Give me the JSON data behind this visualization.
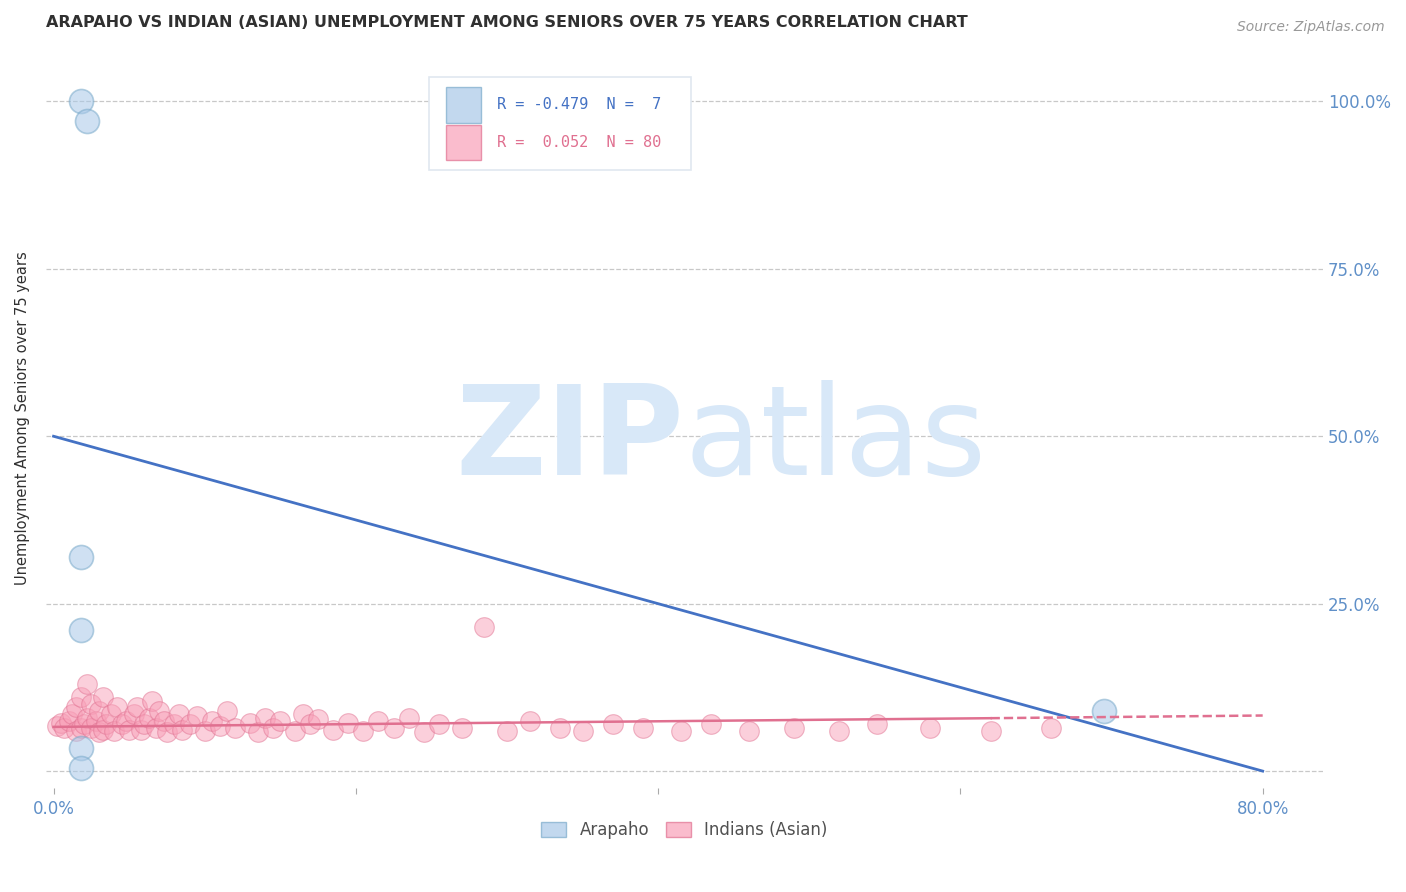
{
  "title": "ARAPAHO VS INDIAN (ASIAN) UNEMPLOYMENT AMONG SENIORS OVER 75 YEARS CORRELATION CHART",
  "source_text": "Source: ZipAtlas.com",
  "ylabel": "Unemployment Among Seniors over 75 years",
  "xlim": [
    -0.005,
    0.84
  ],
  "ylim": [
    -0.025,
    1.08
  ],
  "ytick_values": [
    0.0,
    0.25,
    0.5,
    0.75,
    1.0
  ],
  "ytick_labels_left": [
    "",
    "",
    "",
    "",
    ""
  ],
  "ytick_labels_right": [
    "",
    "25.0%",
    "50.0%",
    "75.0%",
    "100.0%"
  ],
  "xtick_values": [
    0.0,
    0.2,
    0.4,
    0.6,
    0.8
  ],
  "xtick_labels": [
    "0.0%",
    "",
    "",
    "",
    "80.0%"
  ],
  "watermark_zip": "ZIP",
  "watermark_atlas": "atlas",
  "arapaho_color": "#a8c8e8",
  "arapaho_edge": "#7aaaca",
  "indian_color": "#f8a0b8",
  "indian_edge": "#e07090",
  "blue_line_color": "#4472c4",
  "pink_line_color": "#e07090",
  "grid_color": "#c8c8c8",
  "background_color": "#ffffff",
  "title_color": "#303030",
  "axis_label_color": "#303030",
  "tick_color": "#6090c8",
  "watermark_color": "#d8e8f8",
  "legend_box_color": "#e0e8f0",
  "arapaho_x": [
    0.018,
    0.022,
    0.018,
    0.018,
    0.018,
    0.018,
    0.695
  ],
  "arapaho_y": [
    1.0,
    0.97,
    0.32,
    0.21,
    0.035,
    0.005,
    0.09
  ],
  "arapaho_line_x0": 0.0,
  "arapaho_line_y0": 0.5,
  "arapaho_line_x1": 0.8,
  "arapaho_line_y1": 0.0,
  "indian_line_x0": 0.0,
  "indian_line_y0": 0.066,
  "indian_line_x1_solid": 0.62,
  "indian_line_y1_solid": 0.079,
  "indian_line_x2": 0.8,
  "indian_line_y2": 0.083,
  "indian_x": [
    0.002,
    0.005,
    0.007,
    0.01,
    0.012,
    0.015,
    0.015,
    0.018,
    0.018,
    0.02,
    0.022,
    0.022,
    0.025,
    0.025,
    0.028,
    0.03,
    0.03,
    0.033,
    0.033,
    0.035,
    0.038,
    0.04,
    0.042,
    0.045,
    0.048,
    0.05,
    0.053,
    0.055,
    0.058,
    0.06,
    0.063,
    0.065,
    0.068,
    0.07,
    0.073,
    0.075,
    0.08,
    0.083,
    0.085,
    0.09,
    0.095,
    0.1,
    0.105,
    0.11,
    0.115,
    0.12,
    0.13,
    0.135,
    0.14,
    0.145,
    0.15,
    0.16,
    0.165,
    0.17,
    0.175,
    0.185,
    0.195,
    0.205,
    0.215,
    0.225,
    0.235,
    0.245,
    0.255,
    0.27,
    0.285,
    0.3,
    0.315,
    0.335,
    0.35,
    0.37,
    0.39,
    0.415,
    0.435,
    0.46,
    0.49,
    0.52,
    0.545,
    0.58,
    0.62,
    0.66
  ],
  "indian_y": [
    0.068,
    0.072,
    0.065,
    0.075,
    0.085,
    0.06,
    0.095,
    0.065,
    0.11,
    0.07,
    0.08,
    0.13,
    0.065,
    0.1,
    0.075,
    0.058,
    0.09,
    0.062,
    0.11,
    0.07,
    0.085,
    0.06,
    0.095,
    0.07,
    0.075,
    0.062,
    0.085,
    0.095,
    0.062,
    0.07,
    0.08,
    0.105,
    0.065,
    0.09,
    0.075,
    0.058,
    0.07,
    0.085,
    0.062,
    0.07,
    0.082,
    0.06,
    0.075,
    0.068,
    0.09,
    0.065,
    0.072,
    0.058,
    0.08,
    0.065,
    0.075,
    0.06,
    0.085,
    0.07,
    0.078,
    0.062,
    0.072,
    0.06,
    0.075,
    0.065,
    0.08,
    0.058,
    0.07,
    0.065,
    0.215,
    0.06,
    0.075,
    0.065,
    0.06,
    0.07,
    0.065,
    0.06,
    0.07,
    0.06,
    0.065,
    0.06,
    0.07,
    0.065,
    0.06,
    0.065
  ]
}
